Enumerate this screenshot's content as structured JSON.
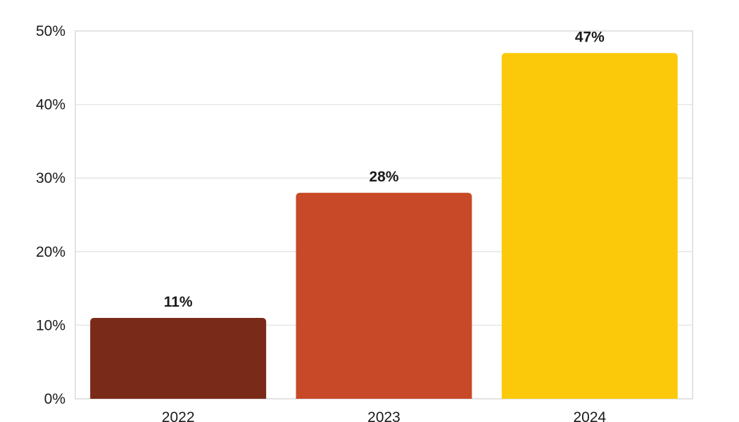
{
  "chart_data": {
    "type": "bar",
    "title": "",
    "xlabel": "",
    "ylabel": "",
    "categories": [
      "2022",
      "2023",
      "2024"
    ],
    "values": [
      11,
      28,
      47
    ],
    "data_labels": [
      "11%",
      "28%",
      "47%"
    ],
    "bar_colors": [
      "#7a2a19",
      "#c84927",
      "#fcc90a"
    ],
    "ylim": [
      0,
      50
    ],
    "yticks": [
      0,
      10,
      20,
      30,
      40,
      50
    ],
    "ytick_labels": [
      "0%",
      "10%",
      "20%",
      "30%",
      "40%",
      "50%"
    ],
    "grid": true,
    "legend": "none"
  }
}
